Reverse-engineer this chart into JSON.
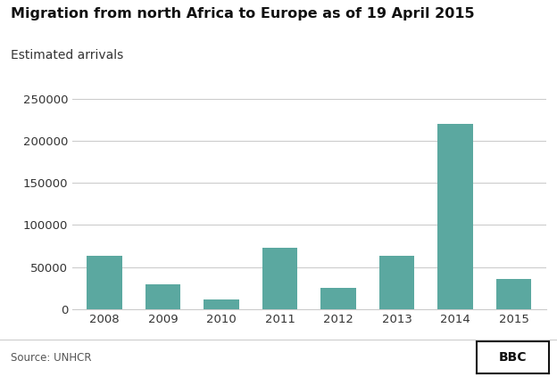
{
  "title": "Migration from north Africa to Europe as of 19 April 2015",
  "subtitle": "Estimated arrivals",
  "source": "Source: UNHCR",
  "bbc_label": "BBC",
  "years": [
    "2008",
    "2009",
    "2010",
    "2011",
    "2012",
    "2013",
    "2014",
    "2015"
  ],
  "values": [
    63000,
    29000,
    12000,
    73000,
    25000,
    63000,
    220000,
    36000
  ],
  "bar_color": "#5ba8a0",
  "background_color": "#ffffff",
  "grid_color": "#cccccc",
  "ylim": [
    0,
    260000
  ],
  "yticks": [
    0,
    50000,
    100000,
    150000,
    200000,
    250000
  ],
  "title_fontsize": 11.5,
  "subtitle_fontsize": 10,
  "tick_fontsize": 9.5,
  "source_fontsize": 8.5,
  "bbc_fontsize": 10
}
